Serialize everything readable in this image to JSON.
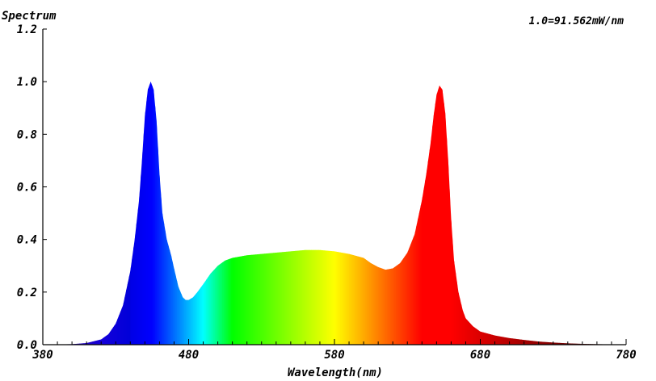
{
  "chart_data": {
    "type": "area",
    "title": "Spectrum",
    "xlabel": "Wavelength(nm)",
    "ylabel": "",
    "annotation": "1.0=91.562mW/nm",
    "xlim": [
      380,
      780
    ],
    "ylim": [
      0,
      1.2
    ],
    "x_ticks": [
      "380",
      "480",
      "580",
      "680",
      "780"
    ],
    "y_ticks": [
      "0.0",
      "0.2",
      "0.4",
      "0.6",
      "0.8",
      "1.0",
      "1.2"
    ],
    "grid": false,
    "fill": "wavelength-colored spectrum",
    "series": [
      {
        "x": [
          380,
          400,
          410,
          420,
          425,
          430,
          435,
          440,
          443,
          446,
          448,
          450,
          452,
          454,
          456,
          458,
          460,
          462,
          465,
          468,
          470,
          473,
          476,
          478,
          480,
          483,
          486,
          490,
          495,
          500,
          505,
          510,
          515,
          520,
          530,
          540,
          550,
          560,
          570,
          580,
          590,
          600,
          605,
          610,
          615,
          620,
          625,
          630,
          635,
          640,
          643,
          646,
          648,
          650,
          652,
          654,
          656,
          658,
          660,
          662,
          665,
          668,
          670,
          675,
          680,
          690,
          700,
          710,
          720,
          730,
          740,
          750,
          760,
          780
        ],
        "y": [
          0.0,
          0.002,
          0.006,
          0.02,
          0.04,
          0.08,
          0.15,
          0.28,
          0.4,
          0.55,
          0.7,
          0.87,
          0.97,
          1.0,
          0.97,
          0.85,
          0.65,
          0.5,
          0.4,
          0.34,
          0.29,
          0.22,
          0.18,
          0.17,
          0.17,
          0.18,
          0.2,
          0.23,
          0.27,
          0.3,
          0.32,
          0.33,
          0.335,
          0.34,
          0.345,
          0.35,
          0.355,
          0.36,
          0.36,
          0.355,
          0.345,
          0.33,
          0.31,
          0.295,
          0.285,
          0.29,
          0.31,
          0.35,
          0.42,
          0.55,
          0.65,
          0.77,
          0.87,
          0.95,
          0.985,
          0.97,
          0.88,
          0.7,
          0.48,
          0.32,
          0.2,
          0.13,
          0.1,
          0.07,
          0.05,
          0.035,
          0.025,
          0.018,
          0.012,
          0.008,
          0.005,
          0.003,
          0.002,
          0.0
        ]
      }
    ]
  }
}
